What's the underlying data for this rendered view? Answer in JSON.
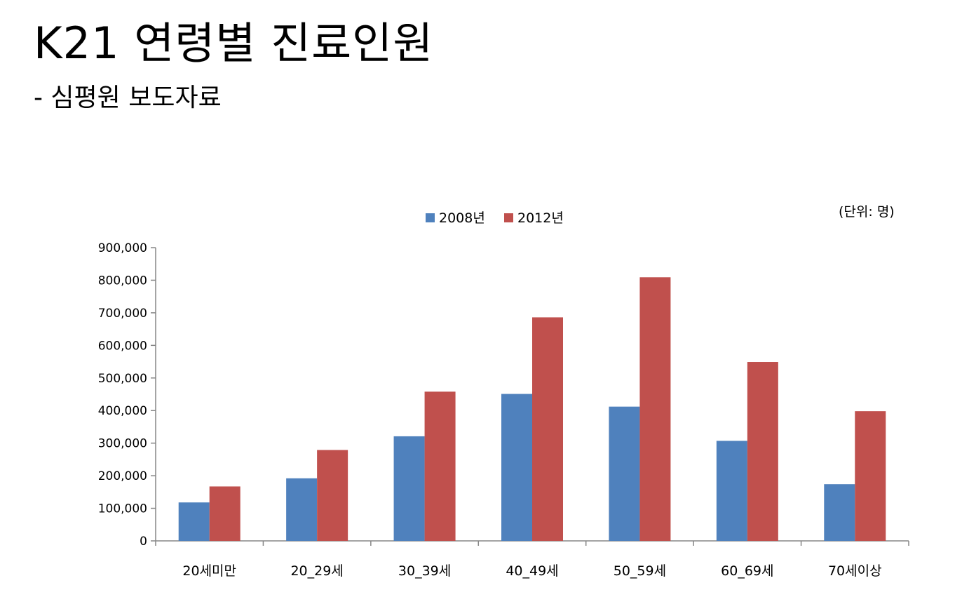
{
  "slide": {
    "title": "K21 연령별 진료인원",
    "subtitle": "- 심평원 보도자료",
    "unit_label": "(단위: 명)"
  },
  "chart_data": {
    "type": "bar",
    "title": "",
    "xlabel": "",
    "ylabel": "",
    "categories": [
      "20세미만",
      "20_29세",
      "30_39세",
      "40_49세",
      "50_59세",
      "60_69세",
      "70세이상"
    ],
    "series": [
      {
        "name": "2008년",
        "color": "#4F81BD",
        "values": [
          118000,
          192000,
          321000,
          451000,
          412000,
          307000,
          174000
        ]
      },
      {
        "name": "2012년",
        "color": "#C0504D",
        "values": [
          167000,
          279000,
          458000,
          686000,
          809000,
          549000,
          398000
        ]
      }
    ],
    "ylim": [
      0,
      900000
    ],
    "yticks": [
      0,
      100000,
      200000,
      300000,
      400000,
      500000,
      600000,
      700000,
      800000,
      900000
    ],
    "ytick_labels": [
      "0",
      "100,000",
      "200,000",
      "300,000",
      "400,000",
      "500,000",
      "600,000",
      "700,000",
      "800,000",
      "900,000"
    ],
    "grid": false,
    "legend": "top-center"
  }
}
